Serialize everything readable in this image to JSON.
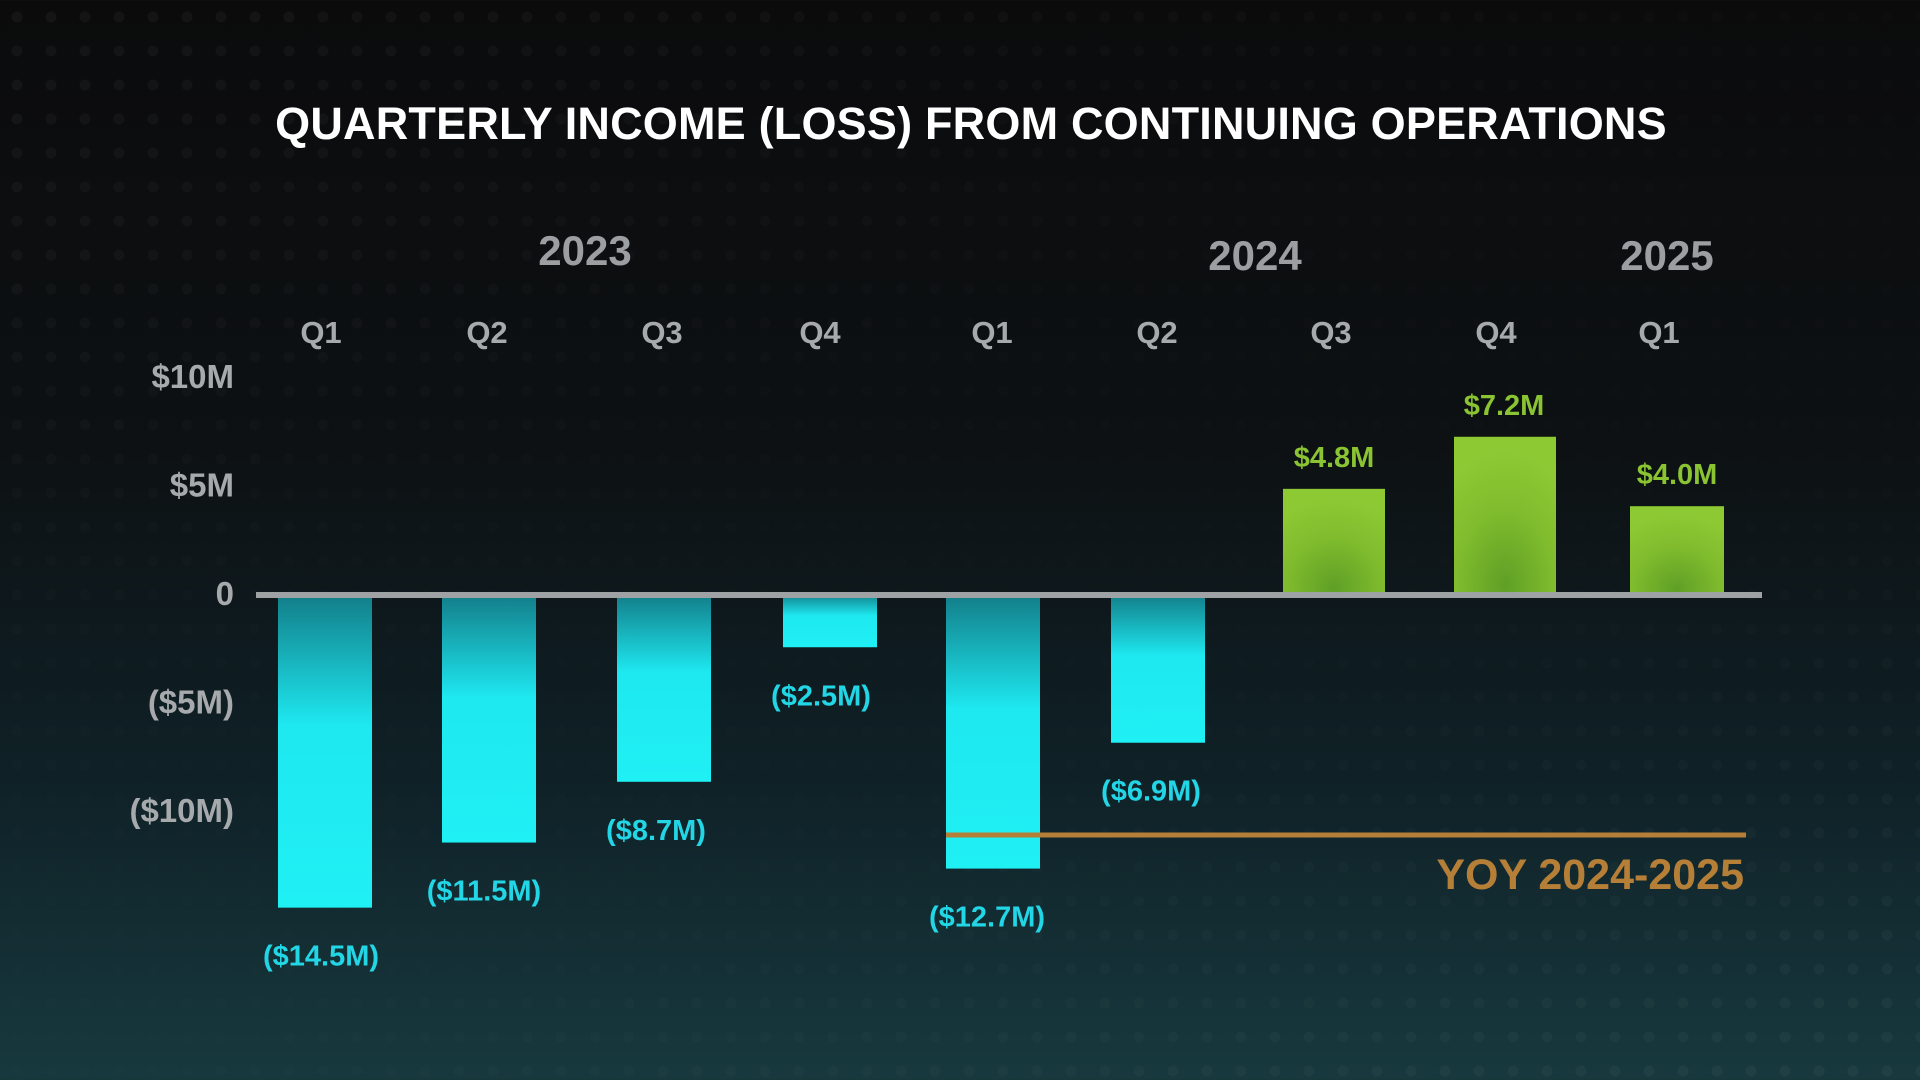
{
  "chart_data": {
    "type": "bar",
    "title": "QUARTERLY INCOME (LOSS) FROM CONTINUING OPERATIONS",
    "units": "$M",
    "years": [
      {
        "label": "2023",
        "start": 0,
        "end": 3
      },
      {
        "label": "2024",
        "start": 4,
        "end": 7
      },
      {
        "label": "2025",
        "start": 8,
        "end": 8
      }
    ],
    "categories": [
      "Q1",
      "Q2",
      "Q3",
      "Q4",
      "Q1",
      "Q2",
      "Q3",
      "Q4",
      "Q1"
    ],
    "values": [
      -14.5,
      -11.5,
      -8.7,
      -2.5,
      -12.7,
      -6.9,
      4.8,
      7.2,
      4.0
    ],
    "value_labels": [
      "($14.5M)",
      "($11.5M)",
      "($8.7M)",
      "($2.5M)",
      "($12.7M)",
      "($6.9M)",
      "$4.8M",
      "$7.2M",
      "$4.0M"
    ],
    "y_ticks": [
      {
        "value": 10,
        "label": "$10M"
      },
      {
        "value": 5,
        "label": "$5M"
      },
      {
        "value": 0,
        "label": "0"
      },
      {
        "value": -5,
        "label": "($5M)"
      },
      {
        "value": -10,
        "label": "($10M)"
      }
    ],
    "ylim": [
      -14.5,
      10
    ],
    "grid": false,
    "legend": "none",
    "annotation": {
      "text": "YOY 2024-2025",
      "from_index": 4,
      "to_index": 8,
      "color": "#b67f38"
    },
    "colors": {
      "negative": "#1ff0f4",
      "positive": "#86c22f",
      "axis": "#9fa2a4"
    }
  }
}
